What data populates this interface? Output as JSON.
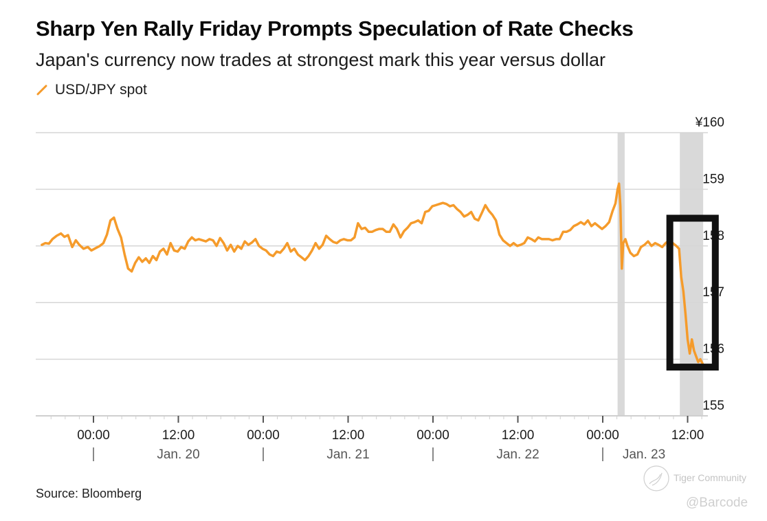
{
  "header": {
    "title": "Sharp Yen Rally Friday Prompts Speculation of Rate Checks",
    "subtitle": "Japan's currency now trades at strongest mark this year versus dollar",
    "legend_label": "USD/JPY spot"
  },
  "footer": {
    "source": "Source: Bloomberg"
  },
  "watermark": {
    "brand": "Tiger Community",
    "handle": "@Barcode"
  },
  "colors": {
    "series": "#f59b2b",
    "grid": "#d6d6d6",
    "shade": "#d9d9d9",
    "highlight_box": "#111111"
  },
  "chart_data": {
    "type": "line",
    "title": "Sharp Yen Rally Friday Prompts Speculation of Rate Checks",
    "subtitle": "Japan's currency now trades at strongest mark this year versus dollar",
    "xlabel": "",
    "ylabel": "",
    "y_unit_prefix": "¥",
    "ylim": [
      155,
      160
    ],
    "y_ticks": [
      155,
      156,
      157,
      158,
      159,
      160
    ],
    "y_tick_labels": [
      "155",
      "156",
      "157",
      "158",
      "159",
      "¥160"
    ],
    "y_axis_side": "right",
    "grid": true,
    "legend": {
      "position": "top-left",
      "entries": [
        "USD/JPY spot"
      ]
    },
    "x_unit": "hours since Jan. 20 00:00",
    "xlim": [
      -7.3,
      86.2
    ],
    "x_ticks": [
      {
        "x": 0,
        "time": "00:00",
        "date": "",
        "day_separator": true
      },
      {
        "x": 12,
        "time": "12:00",
        "date": "Jan. 20",
        "day_separator": false
      },
      {
        "x": 24,
        "time": "00:00",
        "date": "",
        "day_separator": true
      },
      {
        "x": 36,
        "time": "12:00",
        "date": "Jan. 21",
        "day_separator": false
      },
      {
        "x": 48,
        "time": "00:00",
        "date": "",
        "day_separator": true
      },
      {
        "x": 60,
        "time": "12:00",
        "date": "Jan. 22",
        "day_separator": false
      },
      {
        "x": 72,
        "time": "00:00",
        "date": "Jan. 23",
        "day_separator": true
      },
      {
        "x": 84,
        "time": "12:00",
        "date": "",
        "day_separator": false
      }
    ],
    "shaded_periods": [
      {
        "start": 74.1,
        "end": 75.1
      },
      {
        "start": 82.9,
        "end": 86.2
      }
    ],
    "highlight_box": {
      "x_start": 81.0,
      "x_end": 88.4,
      "y_start": 155.8,
      "y_end": 158.55
    },
    "series": [
      {
        "name": "USD/JPY spot",
        "x": [
          -7.3,
          -6.8,
          -6.3,
          -5.8,
          -5.2,
          -4.6,
          -4.1,
          -3.6,
          -3.0,
          -2.5,
          -2.0,
          -1.4,
          -0.8,
          -0.3,
          0.3,
          0.9,
          1.4,
          1.9,
          2.4,
          2.9,
          3.4,
          3.9,
          4.4,
          4.9,
          5.4,
          5.9,
          6.4,
          6.9,
          7.4,
          7.9,
          8.4,
          8.9,
          9.4,
          9.9,
          10.4,
          10.9,
          11.4,
          11.9,
          12.4,
          12.9,
          13.4,
          13.9,
          14.4,
          14.9,
          15.4,
          15.9,
          16.4,
          16.9,
          17.4,
          17.9,
          18.4,
          18.9,
          19.4,
          19.9,
          20.4,
          20.9,
          21.4,
          21.9,
          22.4,
          22.9,
          23.4,
          23.9,
          24.4,
          24.9,
          25.4,
          25.9,
          26.4,
          26.9,
          27.4,
          27.9,
          28.4,
          28.9,
          29.4,
          29.9,
          30.4,
          30.9,
          31.4,
          31.9,
          32.4,
          32.9,
          33.4,
          33.9,
          34.4,
          34.9,
          35.4,
          35.9,
          36.4,
          36.9,
          37.4,
          37.9,
          38.4,
          38.9,
          39.4,
          39.9,
          40.4,
          40.9,
          41.4,
          41.9,
          42.4,
          42.9,
          43.4,
          43.9,
          44.4,
          44.9,
          45.4,
          45.9,
          46.4,
          46.9,
          47.4,
          47.9,
          48.4,
          48.9,
          49.4,
          49.9,
          50.4,
          50.9,
          51.4,
          51.9,
          52.4,
          52.9,
          53.4,
          53.9,
          54.4,
          54.9,
          55.4,
          55.9,
          56.4,
          56.9,
          57.4,
          57.9,
          58.4,
          58.9,
          59.4,
          59.9,
          60.4,
          60.9,
          61.4,
          61.9,
          62.4,
          62.9,
          63.4,
          63.9,
          64.4,
          64.9,
          65.4,
          65.9,
          66.4,
          66.9,
          67.4,
          67.9,
          68.4,
          68.9,
          69.4,
          69.9,
          70.4,
          70.9,
          71.4,
          71.9,
          72.4,
          72.9,
          73.4,
          73.8,
          74.1,
          74.3,
          74.5,
          74.7,
          74.9,
          75.2,
          75.5,
          75.9,
          76.4,
          76.9,
          77.4,
          77.9,
          78.4,
          78.9,
          79.4,
          79.9,
          80.4,
          80.9,
          81.4,
          81.9,
          82.4,
          82.8,
          83.1,
          83.4,
          83.7,
          84.0,
          84.3,
          84.6,
          84.9,
          85.2,
          85.5,
          85.8,
          86.2
        ],
        "y": [
          158.02,
          158.05,
          158.04,
          158.12,
          158.18,
          158.22,
          158.16,
          158.19,
          157.98,
          158.1,
          158.02,
          157.95,
          157.98,
          157.92,
          157.96,
          158.0,
          158.05,
          158.2,
          158.45,
          158.5,
          158.3,
          158.15,
          157.85,
          157.6,
          157.55,
          157.7,
          157.8,
          157.72,
          157.78,
          157.7,
          157.82,
          157.75,
          157.9,
          157.95,
          157.85,
          158.05,
          157.92,
          157.9,
          157.98,
          157.95,
          158.08,
          158.15,
          158.1,
          158.12,
          158.1,
          158.08,
          158.12,
          158.1,
          158.0,
          158.14,
          158.05,
          157.92,
          158.02,
          157.9,
          158.0,
          157.95,
          158.08,
          158.02,
          158.06,
          158.12,
          158.0,
          157.95,
          157.92,
          157.85,
          157.82,
          157.9,
          157.88,
          157.95,
          158.05,
          157.9,
          157.95,
          157.85,
          157.8,
          157.75,
          157.82,
          157.92,
          158.05,
          157.95,
          158.02,
          158.18,
          158.12,
          158.07,
          158.05,
          158.1,
          158.12,
          158.1,
          158.1,
          158.15,
          158.4,
          158.3,
          158.32,
          158.25,
          158.25,
          158.28,
          158.3,
          158.3,
          158.25,
          158.25,
          158.38,
          158.3,
          158.15,
          158.26,
          158.32,
          158.4,
          158.42,
          158.45,
          158.4,
          158.6,
          158.62,
          158.7,
          158.72,
          158.74,
          158.76,
          158.74,
          158.7,
          158.72,
          158.65,
          158.6,
          158.52,
          158.55,
          158.6,
          158.48,
          158.45,
          158.58,
          158.72,
          158.62,
          158.55,
          158.45,
          158.2,
          158.1,
          158.05,
          158.0,
          158.05,
          158.0,
          158.02,
          158.05,
          158.15,
          158.12,
          158.08,
          158.15,
          158.12,
          158.12,
          158.12,
          158.1,
          158.12,
          158.12,
          158.25,
          158.25,
          158.28,
          158.35,
          158.38,
          158.42,
          158.38,
          158.45,
          158.35,
          158.4,
          158.35,
          158.3,
          158.35,
          158.42,
          158.62,
          158.75,
          159.0,
          159.1,
          158.7,
          157.6,
          158.05,
          158.12,
          158.0,
          157.88,
          157.82,
          157.85,
          157.98,
          158.02,
          158.08,
          158.0,
          158.05,
          158.02,
          157.98,
          158.05,
          158.1,
          158.05,
          158.0,
          157.95,
          157.45,
          157.2,
          156.8,
          156.35,
          156.1,
          156.35,
          156.15,
          156.05,
          155.95,
          156.0,
          155.9
        ]
      }
    ]
  }
}
